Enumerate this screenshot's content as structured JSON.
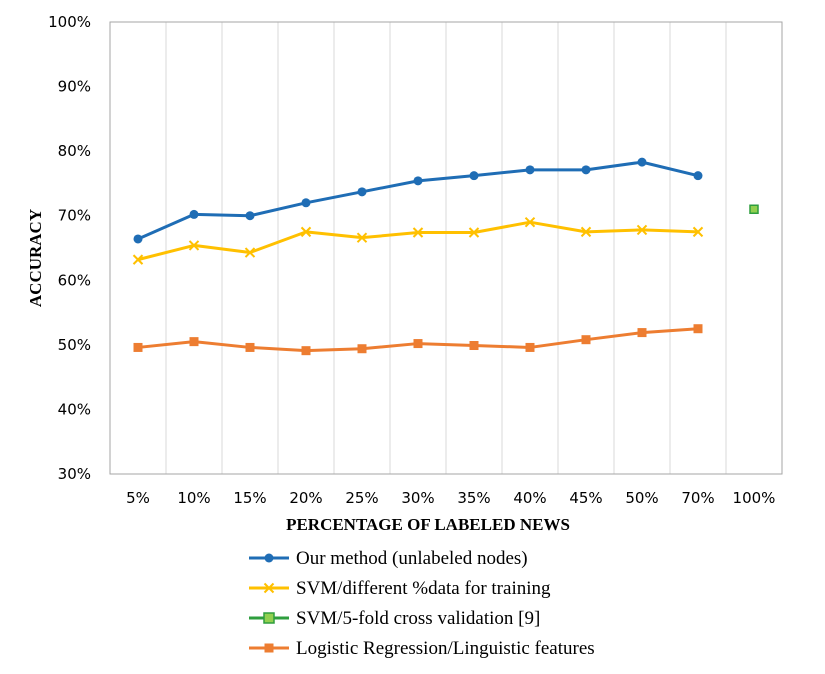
{
  "chart_data": {
    "type": "line",
    "xlabel": "PERCENTAGE OF LABELED NEWS",
    "ylabel": "ACCURACY",
    "categories": [
      "5%",
      "10%",
      "15%",
      "20%",
      "25%",
      "30%",
      "35%",
      "40%",
      "45%",
      "50%",
      "70%",
      "100%"
    ],
    "y_ticks": [
      "30%",
      "40%",
      "50%",
      "60%",
      "70%",
      "80%",
      "90%",
      "100%"
    ],
    "ylim": [
      30,
      100
    ],
    "grid": "vertical",
    "legend_position": "bottom",
    "series": [
      {
        "name": "Our method (unlabeled nodes)",
        "color": "#1f6db5",
        "marker": "circle",
        "values": [
          66.4,
          70.2,
          70.0,
          72.0,
          73.7,
          75.4,
          76.2,
          77.1,
          77.1,
          78.3,
          76.2,
          null
        ]
      },
      {
        "name": "SVM/different %data for training",
        "color": "#ffc000",
        "marker": "x",
        "values": [
          63.2,
          65.4,
          64.3,
          67.5,
          66.6,
          67.4,
          67.4,
          69.0,
          67.5,
          67.8,
          67.5,
          null
        ]
      },
      {
        "name": "SVM/5-fold cross validation [9]",
        "color": "#2e9e3e",
        "fill": "#92d050",
        "marker": "square",
        "values": [
          null,
          null,
          null,
          null,
          null,
          null,
          null,
          null,
          null,
          null,
          null,
          71.0
        ]
      },
      {
        "name": "Logistic Regression/Linguistic features",
        "color": "#ed7d31",
        "marker": "square",
        "values": [
          49.6,
          50.5,
          49.6,
          49.1,
          49.4,
          50.2,
          49.9,
          49.6,
          50.8,
          51.9,
          52.5,
          null
        ]
      }
    ]
  }
}
